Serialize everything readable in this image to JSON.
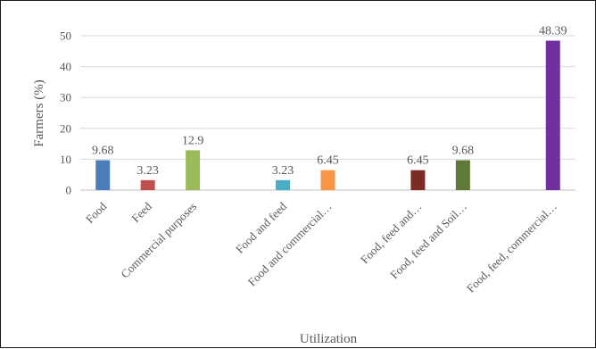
{
  "chart_data": {
    "type": "bar",
    "xlabel": "Utilization",
    "ylabel": "Farmers (%)",
    "ylim": [
      0,
      50
    ],
    "yticks": [
      0,
      10,
      20,
      30,
      40,
      50
    ],
    "grid": true,
    "legend": "none",
    "categories": [
      "Food",
      "Feed",
      "Commercial purposes",
      "",
      "Food and feed",
      "Food and commercial…",
      "",
      "Food, feed and…",
      "Food, feed and Soil…",
      "",
      "Food, feed, commercial…"
    ],
    "values": [
      9.68,
      3.23,
      12.9,
      null,
      3.23,
      6.45,
      null,
      6.45,
      9.68,
      null,
      48.39
    ],
    "data_labels": [
      "9.68",
      "3.23",
      "12.9",
      "",
      "3.23",
      "6.45",
      "",
      "6.45",
      "9.68",
      "",
      "48.39"
    ],
    "colors": [
      "#4a7ebb",
      "#c0504d",
      "#9bbb59",
      "",
      "#4bacc6",
      "#f79646",
      "",
      "#7b2c24",
      "#5e7a35",
      "",
      "#7030a0"
    ]
  }
}
